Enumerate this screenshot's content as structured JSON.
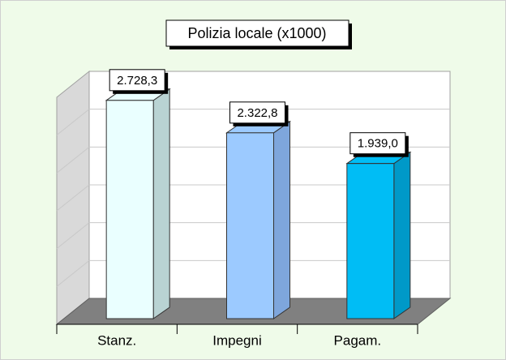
{
  "chart_data": {
    "type": "bar",
    "title": "Polizia locale (x1000)",
    "categories": [
      "Stanz.",
      "Impegni",
      "Pagam."
    ],
    "values": [
      2728.3,
      2322.8,
      1939.0
    ],
    "value_labels": [
      "2.728,3",
      "2.322,8",
      "1.939,0"
    ],
    "colors": [
      "#eaffff",
      "#9ccaff",
      "#00bdf5"
    ],
    "side_colors": [
      "#b9d3d3",
      "#7ea6dc",
      "#0099c8"
    ],
    "ylim": [
      0,
      3000
    ],
    "yticks": [
      0,
      500,
      1000,
      1500,
      2000,
      2500,
      3000
    ],
    "grid": true
  }
}
